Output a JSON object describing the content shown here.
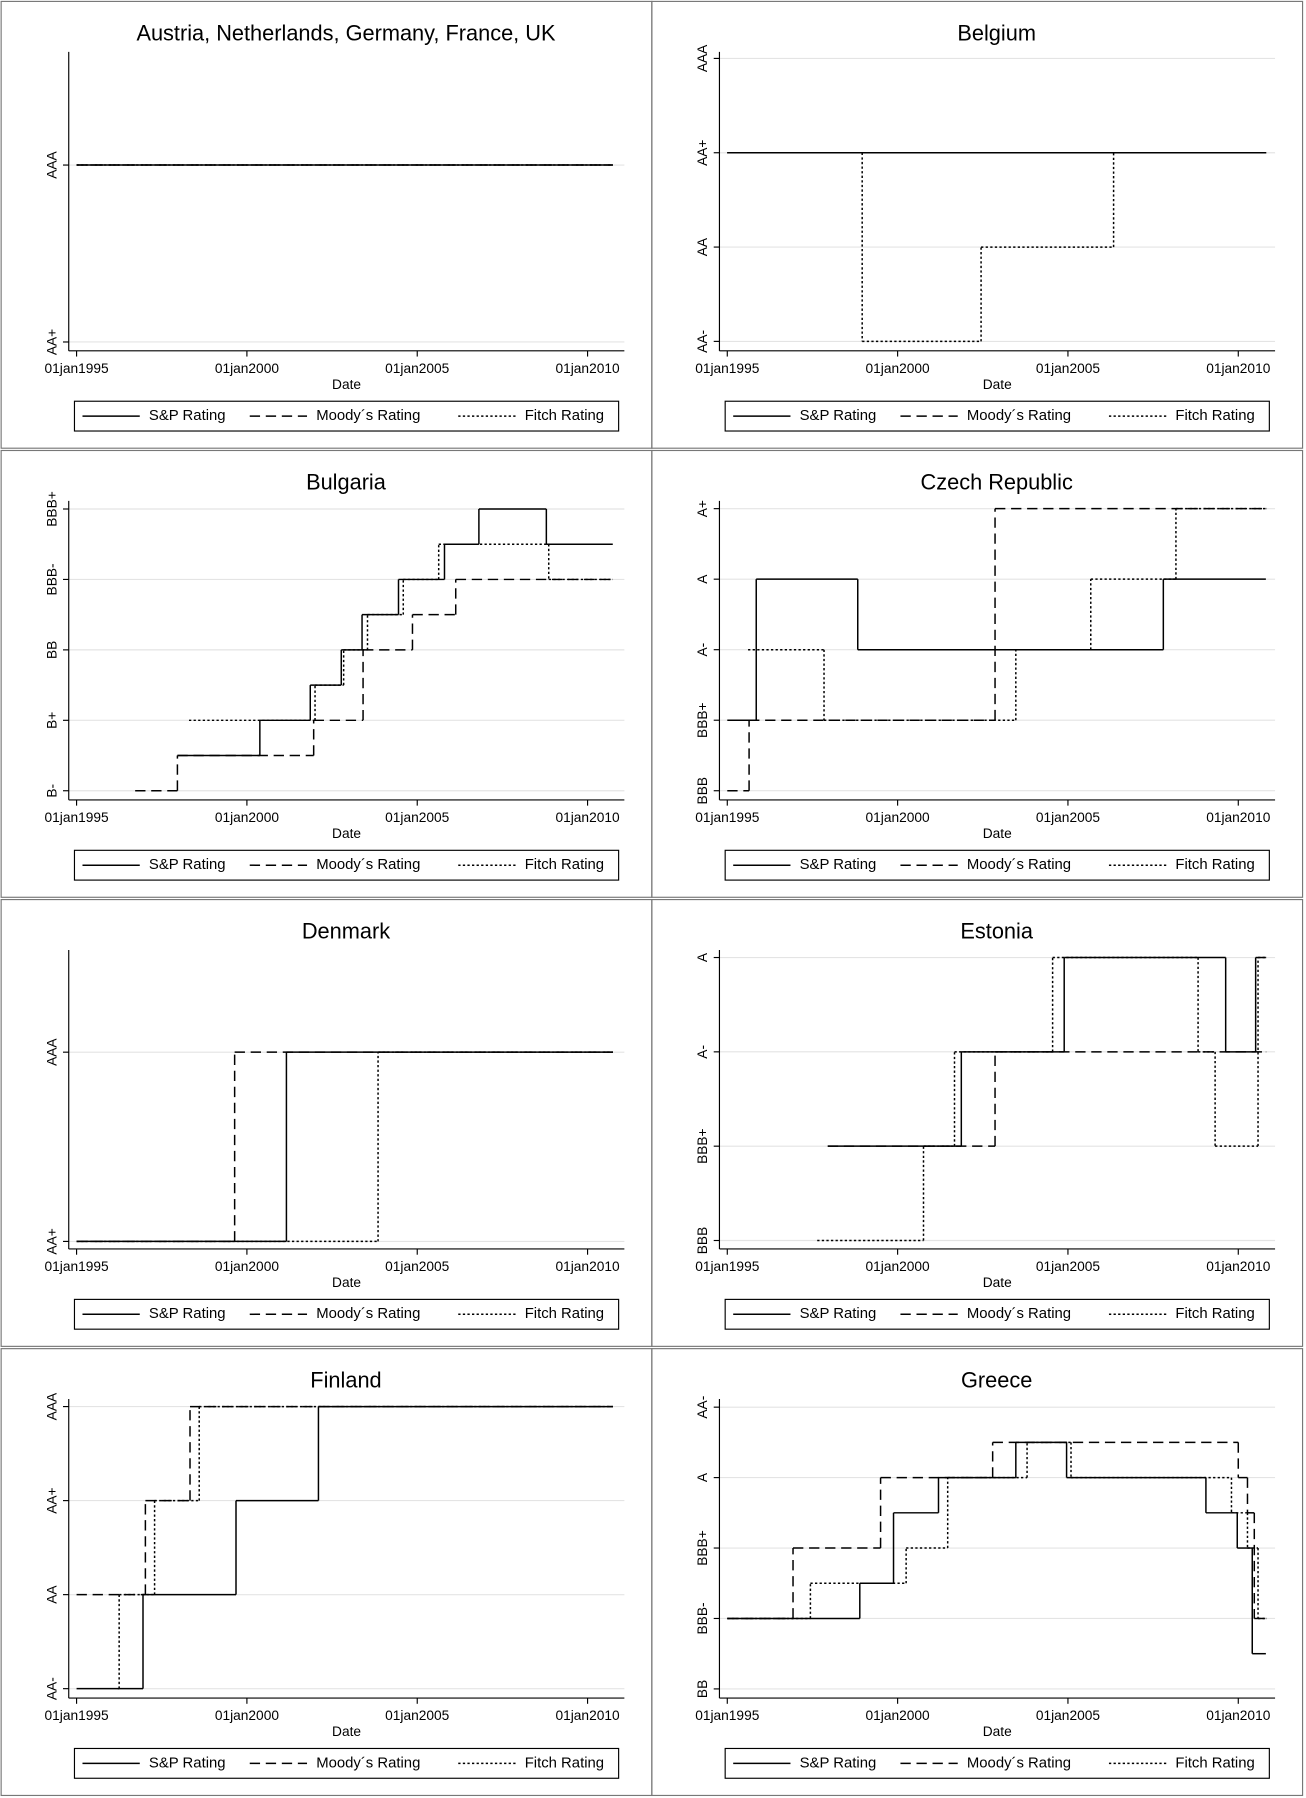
{
  "chart_data": [
    {
      "type": "line",
      "step": "post",
      "title": "Austria, Netherlands, Germany, France, UK",
      "x_label": "Date",
      "xlim": [
        1994.77,
        2011.08
      ],
      "xticks": [
        {
          "value": 1995,
          "label": "01jan1995"
        },
        {
          "value": 2000,
          "label": "01jan2000"
        },
        {
          "value": 2005,
          "label": "01jan2005"
        },
        {
          "value": 2010,
          "label": "01jan2010"
        }
      ],
      "ylim": [
        19.95,
        21.64
      ],
      "yticks": [
        {
          "value": 20,
          "label": "AA+"
        },
        {
          "value": 21,
          "label": "AAA"
        }
      ],
      "grid": true,
      "series": [
        {
          "name": "S&P Rating",
          "color": "#000000",
          "dash": "solid",
          "x": [
            1995,
            2010.74
          ],
          "values": [
            21,
            21
          ]
        },
        {
          "name": "Moody´s Rating",
          "color": "#000000",
          "dash": "dashed",
          "x": [
            1995,
            2010.74
          ],
          "values": [
            21,
            21
          ]
        },
        {
          "name": "Fitch Rating",
          "color": "#000000",
          "dash": "dotted",
          "x": [
            1995,
            2010.74
          ],
          "values": [
            21,
            21
          ]
        }
      ]
    },
    {
      "type": "line",
      "step": "post",
      "title": "Belgium",
      "x_label": "Date",
      "xlim": [
        1994.77,
        2011.08
      ],
      "xticks": [
        {
          "value": 1995,
          "label": "01jan1995"
        },
        {
          "value": 2000,
          "label": "01jan2000"
        },
        {
          "value": 2005,
          "label": "01jan2005"
        },
        {
          "value": 2010,
          "label": "01jan2010"
        }
      ],
      "ylim": [
        17.9,
        21.07
      ],
      "yticks": [
        {
          "value": 18,
          "label": "AA-"
        },
        {
          "value": 19,
          "label": "AA"
        },
        {
          "value": 20,
          "label": "AA+"
        },
        {
          "value": 21,
          "label": "AAA"
        }
      ],
      "grid": true,
      "series": [
        {
          "name": "S&P Rating",
          "color": "#000000",
          "dash": "solid",
          "x": [
            1995,
            2010.81
          ],
          "values": [
            20,
            20
          ]
        },
        {
          "name": "Moody´s Rating",
          "color": "#000000",
          "dash": "dashed",
          "x": [
            1995,
            2010.81
          ],
          "values": [
            20,
            20
          ]
        },
        {
          "name": "Fitch Rating",
          "color": "#000000",
          "dash": "dotted",
          "x": [
            1995,
            1998.96,
            2002.45,
            2006.34,
            2010.81
          ],
          "values": [
            20,
            18,
            19,
            20,
            20
          ]
        }
      ]
    },
    {
      "type": "line",
      "step": "post",
      "title": "Bulgaria",
      "x_label": "Date",
      "xlim": [
        1994.77,
        2011.08
      ],
      "xticks": [
        {
          "value": 1995,
          "label": "01jan1995"
        },
        {
          "value": 2000,
          "label": "01jan2000"
        },
        {
          "value": 2005,
          "label": "01jan2005"
        },
        {
          "value": 2010,
          "label": "01jan2010"
        }
      ],
      "ylim": [
        5.74,
        14.23
      ],
      "yticks": [
        {
          "value": 6,
          "label": "B-"
        },
        {
          "value": 8,
          "label": "B+"
        },
        {
          "value": 10,
          "label": "BB"
        },
        {
          "value": 12,
          "label": "BBB-"
        },
        {
          "value": 14,
          "label": "BBB+"
        }
      ],
      "grid": true,
      "series": [
        {
          "name": "S&P Rating",
          "color": "#000000",
          "dash": "solid",
          "x": [
            1997.96,
            2000.38,
            2001.86,
            2002.77,
            2003.38,
            2004.45,
            2005.8,
            2006.81,
            2008.79,
            2010.74
          ],
          "values": [
            7,
            8,
            9,
            10,
            11,
            12,
            13,
            14,
            13,
            13
          ]
        },
        {
          "name": "Moody´s Rating",
          "color": "#000000",
          "dash": "dashed",
          "x": [
            1996.72,
            1997.96,
            2001.96,
            2003.41,
            2004.86,
            2006.13,
            2010.74
          ],
          "values": [
            6,
            7,
            8,
            10,
            11,
            12,
            12
          ]
        },
        {
          "name": "Fitch Rating",
          "color": "#000000",
          "dash": "dotted",
          "x": [
            1998.3,
            2002.0,
            2002.84,
            2003.54,
            2004.59,
            2005.63,
            2008.86,
            2010.74
          ],
          "values": [
            8,
            9,
            10,
            11,
            12,
            13,
            12,
            12
          ]
        }
      ]
    },
    {
      "type": "line",
      "step": "post",
      "title": "Czech Republic",
      "x_label": "Date",
      "xlim": [
        1994.77,
        2011.08
      ],
      "xticks": [
        {
          "value": 1995,
          "label": "01jan1995"
        },
        {
          "value": 2000,
          "label": "01jan2000"
        },
        {
          "value": 2005,
          "label": "01jan2005"
        },
        {
          "value": 2010,
          "label": "01jan2010"
        }
      ],
      "ylim": [
        12.87,
        17.11
      ],
      "yticks": [
        {
          "value": 13,
          "label": "BBB"
        },
        {
          "value": 14,
          "label": "BBB+"
        },
        {
          "value": 15,
          "label": "A-"
        },
        {
          "value": 16,
          "label": "A"
        },
        {
          "value": 17,
          "label": "A+"
        }
      ],
      "grid": true,
      "series": [
        {
          "name": "S&P Rating",
          "color": "#000000",
          "dash": "solid",
          "x": [
            1995,
            1995.85,
            1998.83,
            2007.8,
            2010.81
          ],
          "values": [
            14,
            16,
            15,
            16,
            16
          ]
        },
        {
          "name": "Moody´s Rating",
          "color": "#000000",
          "dash": "dashed",
          "x": [
            1995,
            1995.64,
            2002.86,
            2010.81
          ],
          "values": [
            13,
            14,
            17,
            17
          ]
        },
        {
          "name": "Fitch Rating",
          "color": "#000000",
          "dash": "dotted",
          "x": [
            1995.61,
            1997.84,
            2003.47,
            2005.67,
            2008.17,
            2010.81
          ],
          "values": [
            15,
            14,
            15,
            16,
            17,
            17
          ]
        }
      ]
    },
    {
      "type": "line",
      "step": "post",
      "title": "Denmark",
      "x_label": "Date",
      "xlim": [
        1994.77,
        2011.08
      ],
      "xticks": [
        {
          "value": 1995,
          "label": "01jan1995"
        },
        {
          "value": 2000,
          "label": "01jan2000"
        },
        {
          "value": 2005,
          "label": "01jan2005"
        },
        {
          "value": 2010,
          "label": "01jan2010"
        }
      ],
      "ylim": [
        19.96,
        21.54
      ],
      "yticks": [
        {
          "value": 20,
          "label": "AA+"
        },
        {
          "value": 21,
          "label": "AAA"
        }
      ],
      "grid": true,
      "series": [
        {
          "name": "S&P Rating",
          "color": "#000000",
          "dash": "solid",
          "x": [
            1995,
            2001.16,
            2010.74
          ],
          "values": [
            20,
            21,
            21
          ]
        },
        {
          "name": "Moody´s Rating",
          "color": "#000000",
          "dash": "dashed",
          "x": [
            1995,
            1999.64,
            2010.74
          ],
          "values": [
            20,
            21,
            21
          ]
        },
        {
          "name": "Fitch Rating",
          "color": "#000000",
          "dash": "dotted",
          "x": [
            1995,
            2003.85,
            2010.74
          ],
          "values": [
            20,
            21,
            21
          ]
        }
      ]
    },
    {
      "type": "line",
      "step": "post",
      "title": "Estonia",
      "x_label": "Date",
      "xlim": [
        1994.77,
        2011.08
      ],
      "xticks": [
        {
          "value": 1995,
          "label": "01jan1995"
        },
        {
          "value": 2000,
          "label": "01jan2000"
        },
        {
          "value": 2005,
          "label": "01jan2005"
        },
        {
          "value": 2010,
          "label": "01jan2010"
        }
      ],
      "ylim": [
        12.91,
        16.08
      ],
      "yticks": [
        {
          "value": 13,
          "label": "BBB"
        },
        {
          "value": 14,
          "label": "BBB+"
        },
        {
          "value": 15,
          "label": "A-"
        },
        {
          "value": 16,
          "label": "A"
        }
      ],
      "grid": true,
      "series": [
        {
          "name": "S&P Rating",
          "color": "#000000",
          "dash": "solid",
          "x": [
            1997.95,
            2001.87,
            2004.89,
            2009.63,
            2010.51,
            2010.81
          ],
          "values": [
            14,
            15,
            16,
            15,
            16,
            16
          ]
        },
        {
          "name": "Moody´s Rating",
          "color": "#000000",
          "dash": "dashed",
          "x": [
            1997.95,
            2002.86,
            2010.81
          ],
          "values": [
            14,
            15,
            15
          ]
        },
        {
          "name": "Fitch Rating",
          "color": "#000000",
          "dash": "dotted",
          "x": [
            1997.64,
            2000.76,
            2001.67,
            2004.55,
            2008.82,
            2009.32,
            2010.58,
            2010.81
          ],
          "values": [
            13,
            14,
            15,
            16,
            15,
            14,
            16,
            16
          ]
        }
      ]
    },
    {
      "type": "line",
      "step": "post",
      "title": "Finland",
      "x_label": "Date",
      "xlim": [
        1994.77,
        2011.08
      ],
      "xticks": [
        {
          "value": 1995,
          "label": "01jan1995"
        },
        {
          "value": 2000,
          "label": "01jan2000"
        },
        {
          "value": 2005,
          "label": "01jan2005"
        },
        {
          "value": 2010,
          "label": "01jan2010"
        }
      ],
      "ylim": [
        17.9,
        21.08
      ],
      "yticks": [
        {
          "value": 18,
          "label": "AA-"
        },
        {
          "value": 19,
          "label": "AA"
        },
        {
          "value": 20,
          "label": "AA+"
        },
        {
          "value": 21,
          "label": "AAA"
        }
      ],
      "grid": true,
      "series": [
        {
          "name": "S&P Rating",
          "color": "#000000",
          "dash": "solid",
          "x": [
            1995,
            1996.95,
            1999.68,
            2002.1,
            2010.74
          ],
          "values": [
            18,
            19,
            20,
            21,
            21
          ]
        },
        {
          "name": "Moody´s Rating",
          "color": "#000000",
          "dash": "dashed",
          "x": [
            1995,
            1997.02,
            1998.33,
            2010.74
          ],
          "values": [
            19,
            20,
            21,
            21
          ]
        },
        {
          "name": "Fitch Rating",
          "color": "#000000",
          "dash": "dotted",
          "x": [
            1996.21,
            1996.25,
            1997.29,
            1998.6,
            2010.74
          ],
          "values": [
            18,
            19,
            20,
            21,
            21
          ]
        }
      ]
    },
    {
      "type": "line",
      "step": "post",
      "title": "Greece",
      "x_label": "Date",
      "xlim": [
        1994.77,
        2011.08
      ],
      "xticks": [
        {
          "value": 1995,
          "label": "01jan1995"
        },
        {
          "value": 2000,
          "label": "01jan2000"
        },
        {
          "value": 2005,
          "label": "01jan2005"
        },
        {
          "value": 2010,
          "label": "01jan2010"
        }
      ],
      "ylim": [
        9.74,
        18.23
      ],
      "yticks": [
        {
          "value": 10,
          "label": "BB"
        },
        {
          "value": 12,
          "label": "BBB-"
        },
        {
          "value": 14,
          "label": "BBB+"
        },
        {
          "value": 16,
          "label": "A"
        },
        {
          "value": 18,
          "label": "AA-"
        }
      ],
      "grid": true,
      "series": [
        {
          "name": "S&P Rating",
          "color": "#000000",
          "dash": "solid",
          "x": [
            1995,
            1998.89,
            1999.88,
            2001.2,
            2003.47,
            2004.96,
            2009.05,
            2009.97,
            2010.41,
            2010.81
          ],
          "values": [
            12,
            13,
            15,
            16,
            17,
            16,
            15,
            14,
            11,
            11
          ]
        },
        {
          "name": "Moody´s Rating",
          "color": "#000000",
          "dash": "dashed",
          "x": [
            1995,
            1996.93,
            1999.5,
            2002.79,
            2010.0,
            2010.27,
            2010.47,
            2010.81
          ],
          "values": [
            12,
            14,
            16,
            17,
            16,
            15,
            12,
            12
          ]
        },
        {
          "name": "Fitch Rating",
          "color": "#000000",
          "dash": "dotted",
          "x": [
            1995,
            1997.44,
            2000.25,
            2001.47,
            2003.8,
            2005.09,
            2009.8,
            2010.27,
            2010.58,
            2010.81
          ],
          "values": [
            12,
            13,
            14,
            16,
            17,
            16,
            15,
            14,
            12,
            12
          ]
        }
      ]
    }
  ]
}
